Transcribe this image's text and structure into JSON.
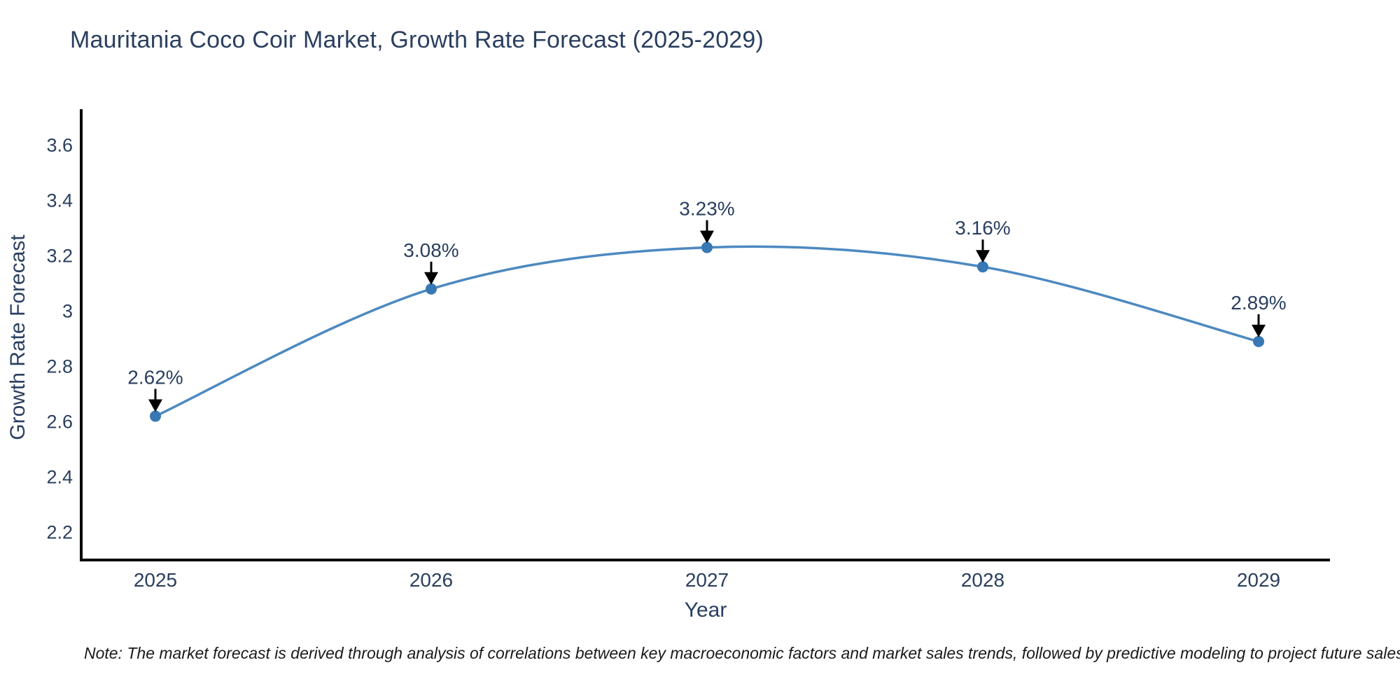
{
  "chart_data": {
    "type": "line",
    "title": "Mauritania Coco Coir Market, Growth Rate Forecast (2025-2029)",
    "xlabel": "Year",
    "ylabel": "Growth Rate Forecast",
    "categories": [
      "2025",
      "2026",
      "2027",
      "2028",
      "2029"
    ],
    "series": [
      {
        "name": "Growth Rate Forecast",
        "values": [
          2.62,
          3.08,
          3.23,
          3.16,
          2.89
        ]
      }
    ],
    "point_labels": [
      "2.62%",
      "3.08%",
      "3.23%",
      "3.16%",
      "2.89%"
    ],
    "yticks": [
      {
        "value": 3.6,
        "label": "3.6"
      },
      {
        "value": 3.4,
        "label": "3.4"
      },
      {
        "value": 3.2,
        "label": "3.2"
      },
      {
        "value": 3.0,
        "label": "3"
      },
      {
        "value": 2.8,
        "label": "2.8"
      },
      {
        "value": 2.6,
        "label": "2.6"
      },
      {
        "value": 2.4,
        "label": "2.4"
      },
      {
        "value": 2.2,
        "label": "2.2"
      }
    ],
    "ylim": [
      2.1,
      3.73
    ],
    "grid": false,
    "legend_position": "none",
    "line_shape": "spline",
    "colors": {
      "line": "#4d89c0",
      "marker": "#3878b4",
      "axis": "#000000",
      "tick_text": "#2a3f5f",
      "annotation_text": "#2a3f5f",
      "annotation_arrow": "#000000"
    }
  },
  "note": "Note: The market forecast is derived through analysis of correlations between key macroeconomic factors and market sales trends, followed by predictive modeling to project future sales"
}
